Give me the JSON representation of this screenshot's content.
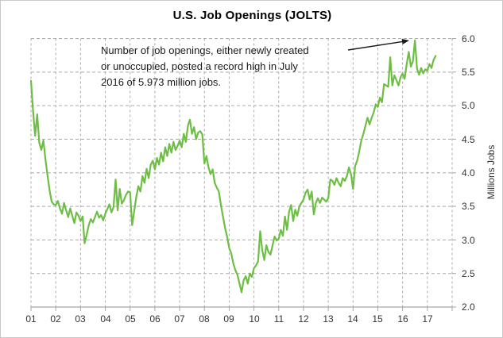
{
  "chart": {
    "title": "U.S. Job Openings (JOLTS)",
    "y_axis_title": "Millions Jobs",
    "y_tick_labels": [
      "6.0",
      "5.5",
      "5.0",
      "4.5",
      "4.0",
      "3.5",
      "3.0",
      "2.5",
      "2.0"
    ],
    "x_tick_labels": [
      "01",
      "02",
      "03",
      "04",
      "05",
      "06",
      "07",
      "08",
      "09",
      "10",
      "11",
      "12",
      "13",
      "14",
      "15",
      "16",
      "17"
    ],
    "annotation_lines": [
      "Number of job openings, either newly created",
      "or unoccupied, posted a record high in July",
      "2016 of 5.973 million jobs."
    ],
    "colors": {
      "line": "#6EBE46",
      "gridline": "#ABABAB",
      "axis": "#A6A6A6",
      "tick_text": "#333333",
      "title_text": "#000000",
      "arrow": "#1A1A1A",
      "border": "#C9C9C9"
    }
  },
  "chart_data": {
    "type": "line",
    "title": "U.S. Job Openings (JOLTS)",
    "xlabel": "",
    "ylabel": "Millions Jobs",
    "ylim": [
      2.0,
      6.0
    ],
    "yticks": [
      2.0,
      2.5,
      3.0,
      3.5,
      4.0,
      4.5,
      5.0,
      5.5,
      6.0
    ],
    "x_tick_labels": [
      "01",
      "02",
      "03",
      "04",
      "05",
      "06",
      "07",
      "08",
      "09",
      "10",
      "11",
      "12",
      "13",
      "14",
      "15",
      "16",
      "17"
    ],
    "x_start": "2001-01",
    "x_end": "2017-05",
    "frequency": "monthly",
    "grid": true,
    "legend_position": "none",
    "annotation": {
      "text": "Number of job openings, either newly created or unoccupied, posted a record high in July 2016 of 5.973 million jobs.",
      "arrow_points_to": {
        "month": "2016-07",
        "value": 5.973
      }
    },
    "record_high": {
      "month": "July 2016",
      "value_millions": 5.973
    },
    "series": [
      {
        "name": "U.S. job openings (millions)",
        "values": [
          5.37,
          4.92,
          4.55,
          4.87,
          4.45,
          4.34,
          4.48,
          4.2,
          3.96,
          3.74,
          3.57,
          3.53,
          3.52,
          3.58,
          3.47,
          3.39,
          3.55,
          3.44,
          3.34,
          3.47,
          3.36,
          3.25,
          3.41,
          3.36,
          3.28,
          3.35,
          2.95,
          3.08,
          3.22,
          3.31,
          3.26,
          3.34,
          3.42,
          3.33,
          3.37,
          3.29,
          3.39,
          3.46,
          3.53,
          3.41,
          3.49,
          3.9,
          3.44,
          3.76,
          3.54,
          3.59,
          3.67,
          3.72,
          3.71,
          3.22,
          3.43,
          3.64,
          3.8,
          3.72,
          3.95,
          3.85,
          4.06,
          3.92,
          4.12,
          4.18,
          4.05,
          4.22,
          4.12,
          4.3,
          4.17,
          4.38,
          4.25,
          4.43,
          4.3,
          4.46,
          4.34,
          4.4,
          4.48,
          4.38,
          4.58,
          4.46,
          4.7,
          4.79,
          4.58,
          4.68,
          4.5,
          4.6,
          4.62,
          4.57,
          4.14,
          4.25,
          4.08,
          3.98,
          4.05,
          3.85,
          3.78,
          3.72,
          3.52,
          3.35,
          3.18,
          3.05,
          2.88,
          2.8,
          2.65,
          2.55,
          2.48,
          2.35,
          2.22,
          2.4,
          2.46,
          2.35,
          2.5,
          2.45,
          2.58,
          2.62,
          2.68,
          3.13,
          2.85,
          2.7,
          2.92,
          2.82,
          2.78,
          2.92,
          3.05,
          2.99,
          3.02,
          3.15,
          3.06,
          3.35,
          3.15,
          3.42,
          3.52,
          3.28,
          3.45,
          3.36,
          3.5,
          3.55,
          3.6,
          3.7,
          3.75,
          3.6,
          3.72,
          3.38,
          3.55,
          3.62,
          3.55,
          3.63,
          3.6,
          3.57,
          3.62,
          3.9,
          3.88,
          3.82,
          3.92,
          3.85,
          3.8,
          3.92,
          3.88,
          3.95,
          4.08,
          3.98,
          3.76,
          4.1,
          4.18,
          4.32,
          4.48,
          4.58,
          4.7,
          4.82,
          4.72,
          4.82,
          4.9,
          5.02,
          4.98,
          5.12,
          5.05,
          5.32,
          5.3,
          5.28,
          5.72,
          5.3,
          5.45,
          5.38,
          5.3,
          5.42,
          5.48,
          5.4,
          5.62,
          5.8,
          5.58,
          5.66,
          5.973,
          5.55,
          5.46,
          5.56,
          5.48,
          5.54,
          5.52,
          5.62,
          5.56,
          5.68,
          5.74
        ]
      }
    ]
  }
}
